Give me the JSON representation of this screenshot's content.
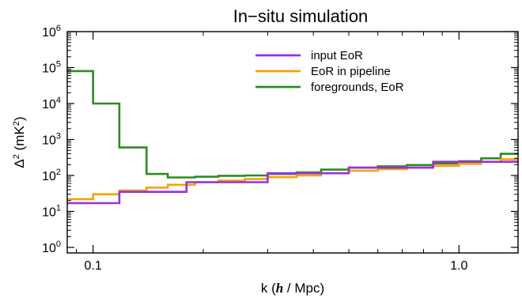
{
  "chart_data": {
    "type": "line",
    "title": "In−situ simulation",
    "xlabel": {
      "prefix": "k (",
      "emph": "h",
      "suffix": " / Mpc)"
    },
    "ylabel": {
      "base": "Δ",
      "sup": "2",
      "unit_prefix": " (mK",
      "unit_sup": "2",
      "unit_suffix": ")"
    },
    "x_scale": "log",
    "y_scale": "log",
    "xlim": [
      0.085,
      1.45
    ],
    "ylim": [
      0.7,
      1000000
    ],
    "x_ticks": [
      {
        "value": 0.1,
        "label": "0.1"
      },
      {
        "value": 1.0,
        "label": "1.0"
      }
    ],
    "y_ticks": [
      {
        "value": 1,
        "base": "10",
        "exp": "0"
      },
      {
        "value": 10,
        "base": "10",
        "exp": "1"
      },
      {
        "value": 100,
        "base": "10",
        "exp": "2"
      },
      {
        "value": 1000,
        "base": "10",
        "exp": "3"
      },
      {
        "value": 10000,
        "base": "10",
        "exp": "4"
      },
      {
        "value": 100000,
        "base": "10",
        "exp": "5"
      },
      {
        "value": 1000000,
        "base": "10",
        "exp": "6"
      }
    ],
    "legend_position": "top-right",
    "series": [
      {
        "name": "foregrounds, EoR",
        "color": "#2e8b22",
        "edges": [
          0.085,
          0.1,
          0.118,
          0.14,
          0.16,
          0.19,
          0.22,
          0.26,
          0.3,
          0.36,
          0.42,
          0.5,
          0.6,
          0.72,
          0.85,
          1.0,
          1.15,
          1.3,
          1.45
        ],
        "values": [
          80000,
          10000,
          600,
          110,
          88,
          92,
          98,
          100,
          110,
          122,
          145,
          165,
          180,
          195,
          215,
          250,
          300,
          400
        ]
      },
      {
        "name": "EoR in pipeline",
        "color": "#f5a300",
        "edges": [
          0.085,
          0.1,
          0.118,
          0.14,
          0.16,
          0.19,
          0.22,
          0.26,
          0.3,
          0.36,
          0.42,
          0.5,
          0.6,
          0.72,
          0.85,
          1.0,
          1.15,
          1.3,
          1.45
        ],
        "values": [
          22,
          30,
          38,
          46,
          55,
          65,
          72,
          80,
          90,
          100,
          115,
          135,
          150,
          165,
          185,
          210,
          240,
          280
        ]
      },
      {
        "name": "input EoR",
        "color": "#9b30e0",
        "edges": [
          0.085,
          0.1,
          0.118,
          0.18,
          0.3,
          0.5,
          0.85,
          1.45
        ],
        "values": [
          17,
          17,
          35,
          65,
          115,
          165,
          240
        ]
      }
    ]
  }
}
